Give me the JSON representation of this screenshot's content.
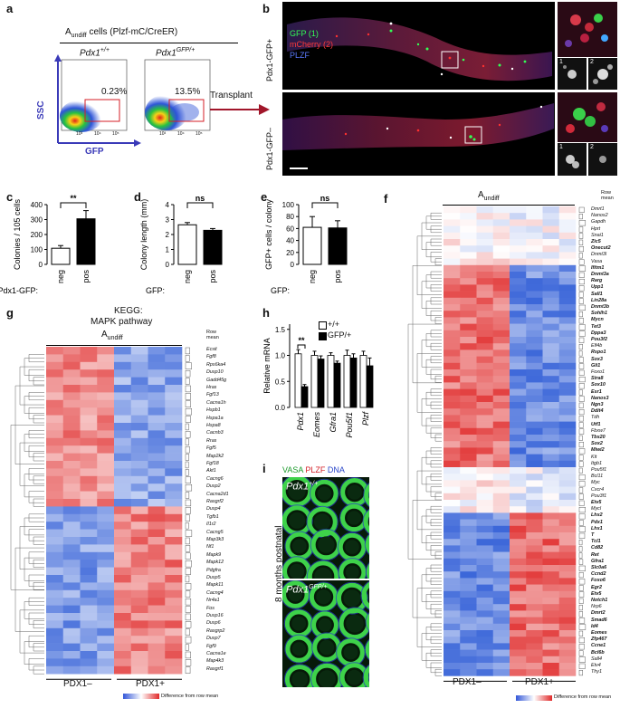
{
  "panels": {
    "a": {
      "label": "a",
      "title": "A",
      "title_sub": "undiff",
      "title_rest": " cells (Plzf-mC/CreER)",
      "left_header": "Pdx1+/+",
      "right_header": "PdxGFP/+",
      "left_header_base": "Pdx1",
      "left_header_sup": "+/+",
      "right_header_base": "Pdx1",
      "right_header_sup": "GFP/+",
      "left_pct": "0.23%",
      "right_pct": "13.5%",
      "yaxis": "SSC",
      "xaxis": "GFP",
      "arrow_label": "Transplant",
      "ticks": [
        "10³",
        "10⁴",
        "10⁵"
      ]
    },
    "b": {
      "label": "b",
      "row1": "Pdx1-GFP+",
      "row2": "Pdx1-GFP–",
      "legend_gfp": "GFP (1)",
      "legend_mcherry": "mCherry (2)",
      "legend_plzf": "PLZF",
      "inset1": "1",
      "inset2": "2"
    },
    "c": {
      "label": "c",
      "ylabel": "Colonies / 10",
      "ylabel_sup": "5",
      "ylabel_end": " cells",
      "xrow_label": "Pdx1-GFP:",
      "sig": "**"
    },
    "d": {
      "label": "d",
      "ylabel": "Colony length (mm)",
      "xrow_label": "GFP:",
      "sig": "ns"
    },
    "e": {
      "label": "e",
      "ylabel": "GFP+ cells / colony",
      "xrow_label": "GFP:",
      "sig": "ns"
    },
    "f": {
      "label": "f",
      "title": "A",
      "title_sub": "undiff",
      "rowmean": "Row mean",
      "group1": "PDX1–",
      "group2": "PDX1+",
      "scale_label": "Difference from row mean",
      "scale_ticks": [
        "−1.5",
        "−0.5",
        "0",
        "0.5",
        "1.5"
      ]
    },
    "g": {
      "label": "g",
      "title1": "KEGG:",
      "title2": "MAPK pathway",
      "subtitle": "A",
      "subtitle_sub": "undiff",
      "rowmean": "Row mean",
      "group1": "PDX1–",
      "group2": "PDX1+",
      "scale_label": "Difference from row mean",
      "scale_ticks": [
        "−1",
        "−0.5",
        "0",
        "0.5",
        "1"
      ]
    },
    "h": {
      "label": "h",
      "ylabel": "Relative mRNA",
      "legend1": "+/+",
      "legend2": "GFP/+",
      "sig": "**"
    },
    "i": {
      "label": "i",
      "vasa": "VASA",
      "plzf": "PLZF",
      "dna": "DNA",
      "top_geno_base": "Pdx1",
      "top_geno_sup": "+/+",
      "bot_geno_base": "Pdx1",
      "bot_geno_sup": "GFP/+",
      "side": "8 months postnatal"
    }
  },
  "chart_data": [
    {
      "panel": "c",
      "type": "bar",
      "categories": [
        "neg",
        "pos"
      ],
      "values": [
        108,
        305
      ],
      "errors": [
        18,
        55
      ],
      "ylabel": "Colonies / 10^5 cells",
      "yticks": [
        0,
        100,
        200,
        300,
        400
      ],
      "ylim": [
        0,
        400
      ],
      "colors": [
        "#ffffff",
        "#000000"
      ]
    },
    {
      "panel": "d",
      "type": "bar",
      "categories": [
        "neg",
        "pos"
      ],
      "values": [
        2.65,
        2.28
      ],
      "errors": [
        0.15,
        0.12
      ],
      "ylabel": "Colony length (mm)",
      "yticks": [
        0,
        1,
        2,
        3,
        4
      ],
      "ylim": [
        0,
        4
      ],
      "colors": [
        "#ffffff",
        "#000000"
      ]
    },
    {
      "panel": "e",
      "type": "bar",
      "categories": [
        "neg",
        "pos"
      ],
      "values": [
        62,
        61
      ],
      "errors": [
        18,
        12
      ],
      "ylabel": "GFP+ cells / colony",
      "yticks": [
        0,
        20,
        40,
        60,
        80,
        100
      ],
      "ylim": [
        0,
        100
      ],
      "colors": [
        "#ffffff",
        "#000000"
      ]
    },
    {
      "panel": "h",
      "type": "bar",
      "categories": [
        "Pdx1",
        "Eomes",
        "Gfra1",
        "Pou5f1",
        "Plzf"
      ],
      "series": [
        {
          "name": "+/+",
          "values": [
            1.03,
            1.0,
            1.0,
            1.0,
            1.0
          ],
          "errors": [
            0.08,
            0.08,
            0.05,
            0.1,
            0.08
          ]
        },
        {
          "name": "GFP/+",
          "values": [
            0.4,
            0.93,
            0.85,
            0.95,
            0.8
          ],
          "errors": [
            0.04,
            0.06,
            0.04,
            0.08,
            0.15
          ]
        }
      ],
      "ylabel": "Relative mRNA",
      "yticks": [
        0.0,
        0.5,
        1.0,
        1.5
      ],
      "ylim": [
        0,
        1.6
      ]
    }
  ],
  "genes_f": [
    {
      "n": "Dmrt1",
      "b": false
    },
    {
      "n": "Nanos2",
      "b": false
    },
    {
      "n": "Gapdh",
      "b": false
    },
    {
      "n": "Hprt",
      "b": false
    },
    {
      "n": "Snai1",
      "b": false
    },
    {
      "n": "Zic5",
      "b": true
    },
    {
      "n": "Onecut2",
      "b": true
    },
    {
      "n": "Dnmt3l",
      "b": false
    },
    {
      "n": "Vasa",
      "b": false
    },
    {
      "n": "Ifitm1",
      "b": true
    },
    {
      "n": "Dnmt3a",
      "b": true
    },
    {
      "n": "Rarg",
      "b": true
    },
    {
      "n": "Upp1",
      "b": true
    },
    {
      "n": "Sall1",
      "b": true
    },
    {
      "n": "Lin28a",
      "b": true
    },
    {
      "n": "Dnmt3b",
      "b": true
    },
    {
      "n": "Sohlh1",
      "b": true
    },
    {
      "n": "Mycn",
      "b": true
    },
    {
      "n": "Tet3",
      "b": true
    },
    {
      "n": "Dppa3",
      "b": true
    },
    {
      "n": "Pou3f2",
      "b": true
    },
    {
      "n": "Elf4b",
      "b": false
    },
    {
      "n": "Rspo1",
      "b": true
    },
    {
      "n": "Sox3",
      "b": true
    },
    {
      "n": "Gli1",
      "b": true
    },
    {
      "n": "Foxo1",
      "b": false
    },
    {
      "n": "Stra8",
      "b": true
    },
    {
      "n": "Sox10",
      "b": true
    },
    {
      "n": "Esr1",
      "b": true
    },
    {
      "n": "Nanos3",
      "b": true
    },
    {
      "n": "Ngn3",
      "b": true
    },
    {
      "n": "Ddit4",
      "b": true
    },
    {
      "n": "Tdh",
      "b": false
    },
    {
      "n": "Utf1",
      "b": true
    },
    {
      "n": "Fbxw7",
      "b": false
    },
    {
      "n": "Tbx20",
      "b": true
    },
    {
      "n": "Sox2",
      "b": true
    },
    {
      "n": "Miwi2",
      "b": true
    },
    {
      "n": "Kit",
      "b": false
    },
    {
      "n": "Itgb1",
      "b": false
    },
    {
      "n": "Pou5f1",
      "b": false
    },
    {
      "n": "Bcl11",
      "b": false
    },
    {
      "n": "Myc",
      "b": false
    },
    {
      "n": "Cxcr4",
      "b": false
    },
    {
      "n": "Pou3f1",
      "b": false
    },
    {
      "n": "Etv5",
      "b": true
    },
    {
      "n": "Mycl",
      "b": false
    },
    {
      "n": "Lhx2",
      "b": true
    },
    {
      "n": "Pdx1",
      "b": true
    },
    {
      "n": "Lhx1",
      "b": true
    },
    {
      "n": "T",
      "b": true
    },
    {
      "n": "Tcl1",
      "b": true
    },
    {
      "n": "Cd82",
      "b": true
    },
    {
      "n": "Ret",
      "b": true
    },
    {
      "n": "Gfra1",
      "b": true
    },
    {
      "n": "Slc0a6",
      "b": true
    },
    {
      "n": "Ccnd2",
      "b": true
    },
    {
      "n": "Foxo6",
      "b": true
    },
    {
      "n": "Egr2",
      "b": true
    },
    {
      "n": "Etv5",
      "b": true
    },
    {
      "n": "Notch1",
      "b": true
    },
    {
      "n": "Nrp6",
      "b": false
    },
    {
      "n": "Dmrt2",
      "b": true
    },
    {
      "n": "Smad6",
      "b": true
    },
    {
      "n": "Id4",
      "b": true
    },
    {
      "n": "Eomes",
      "b": true
    },
    {
      "n": "Zfp467",
      "b": true
    },
    {
      "n": "Ccne1",
      "b": true
    },
    {
      "n": "Bcl6b",
      "b": true
    },
    {
      "n": "Sall4",
      "b": false
    },
    {
      "n": "Etv4",
      "b": false
    },
    {
      "n": "Thy1",
      "b": false
    }
  ],
  "genes_g": [
    "Ecsit",
    "Fgf8",
    "Rps6ka4",
    "Dusp10",
    "Gadd45g",
    "Hras",
    "Fgf13",
    "Cacna1h",
    "Hspb1",
    "Hspa1a",
    "Hspa8",
    "Cacnb3",
    "Rras",
    "Fgf5",
    "Map2k2",
    "Fgf18",
    "Akt1",
    "Cacng6",
    "Dusp2",
    "Cacna2d1",
    "Rasgrf2",
    "Dusp4",
    "Tgfb1",
    "Il1r2",
    "Cacng5",
    "Map3k3",
    "Nf1",
    "Mapk9",
    "Mapk12",
    "Pdgfra",
    "Dusp5",
    "Mapk11",
    "Cacng4",
    "Nr4a1",
    "Fos",
    "Dusp16",
    "Dusp6",
    "Rasgrp2",
    "Dusp7",
    "Fgf9",
    "Cacna1e",
    "Map4k3",
    "Rasgrf1"
  ]
}
